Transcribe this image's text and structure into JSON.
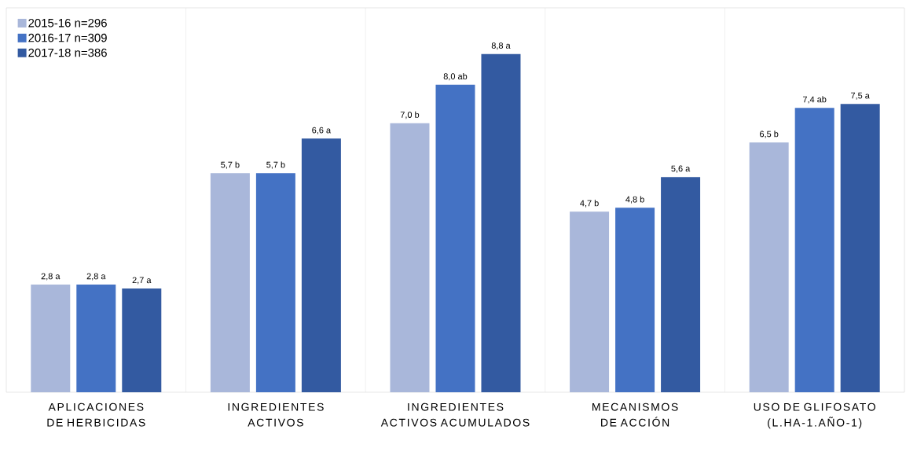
{
  "chart_data": {
    "type": "bar",
    "categories": [
      "APLICACIONES DE HERBICIDAS",
      "INGREDIENTES ACTIVOS",
      "INGREDIENTES ACTIVOS ACUMULADOS",
      "MECANISMOS DE ACCIÓN",
      "USO DE GLIFOSATO (L.HA-1.AÑO-1)"
    ],
    "series": [
      {
        "name": "2015-16 n=296",
        "color": "#a9b7da",
        "values": [
          2.8,
          5.7,
          7.0,
          4.7,
          6.5
        ],
        "value_labels": [
          "2,8 a",
          "5,7 b",
          "7,0 b",
          "4,7 b",
          "6,5 b"
        ]
      },
      {
        "name": "2016-17 n=309",
        "color": "#4472c4",
        "values": [
          2.8,
          5.7,
          8.0,
          4.8,
          7.4
        ],
        "value_labels": [
          "2,8 a",
          "5,7 b",
          "8,0 ab",
          "4,8 b",
          "7,4 ab"
        ]
      },
      {
        "name": "2017-18 n=386",
        "color": "#335aa1",
        "values": [
          2.7,
          6.6,
          8.8,
          5.6,
          7.5
        ],
        "value_labels": [
          "2,7 a",
          "6,6 a",
          "8,8 a",
          "5,6 a",
          "7,5 a"
        ]
      }
    ],
    "ylim": [
      0,
      10
    ],
    "tick_labels": "x",
    "legend": "top left"
  }
}
